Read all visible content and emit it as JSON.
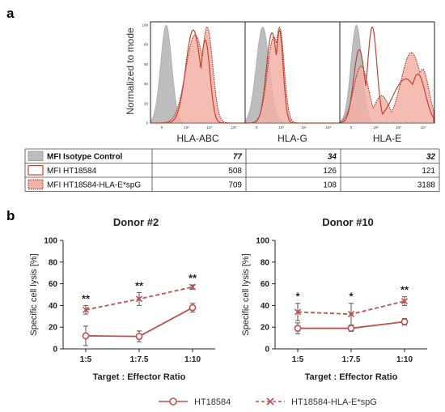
{
  "panel_a": {
    "letter": "a",
    "ylabel": "Normalized to mode",
    "yticks": [
      "0",
      "20",
      "40",
      "60",
      "80",
      "100"
    ],
    "xticks": [
      "0",
      "10³",
      "10⁴",
      "10⁵"
    ],
    "histograms": [
      {
        "label": "HLA-ABC"
      },
      {
        "label": "HLA-G"
      },
      {
        "label": "HLA-E"
      }
    ],
    "table": {
      "rows": [
        {
          "label": "MFI Isotype Control",
          "values": [
            "77",
            "34",
            "32"
          ],
          "bold": true,
          "swatch": "isotype"
        },
        {
          "label": "MFI HT18584",
          "values": [
            "508",
            "126",
            "121"
          ],
          "bold": false,
          "swatch": "ht"
        },
        {
          "label": "MFI HT18584-HLA-E*spG",
          "values": [
            "709",
            "108",
            "3188"
          ],
          "bold": false,
          "swatch": "spg"
        }
      ]
    }
  },
  "panel_b": {
    "letter": "b",
    "legend": [
      "HT18584",
      "HT18584-HLA-E*spG"
    ]
  },
  "colors": {
    "isotype_fill": "#bdbdbd",
    "ht_line": "#c4422f",
    "spg_fill": "#f3b0a6",
    "spg_line": "#8b2a1e",
    "line_chart": "#c0504d"
  },
  "chart_data": [
    {
      "type": "line",
      "title": "Donor #2",
      "xlabel": "Target : Effector Ratio",
      "ylabel": "Specific cell lysis [%]",
      "categories": [
        "1:5",
        "1:7.5",
        "1:10"
      ],
      "ylim": [
        0,
        100
      ],
      "yticks": [
        0,
        20,
        40,
        60,
        80,
        100
      ],
      "series": [
        {
          "name": "HT18584",
          "values": [
            12,
            11.5,
            38
          ],
          "errors": [
            9,
            5,
            4
          ],
          "style": "solid-circle"
        },
        {
          "name": "HT18584-HLA-E*spG",
          "values": [
            36,
            46,
            57
          ],
          "errors": [
            4,
            6,
            2
          ],
          "style": "dashed-cross"
        }
      ],
      "annotations": [
        "**",
        "**",
        "**"
      ]
    },
    {
      "type": "line",
      "title": "Donor #10",
      "xlabel": "Target : Effector Ratio",
      "ylabel": "Specific cell lysis [%]",
      "categories": [
        "1:5",
        "1:7.5",
        "1:10"
      ],
      "ylim": [
        0,
        100
      ],
      "yticks": [
        0,
        20,
        40,
        60,
        80,
        100
      ],
      "series": [
        {
          "name": "HT18584",
          "values": [
            19,
            19,
            25
          ],
          "errors": [
            5,
            3,
            3
          ],
          "style": "solid-circle"
        },
        {
          "name": "HT18584-HLA-E*spG",
          "values": [
            34,
            32,
            44
          ],
          "errors": [
            8,
            10,
            4
          ],
          "style": "dashed-cross"
        }
      ],
      "annotations": [
        "*",
        "*",
        "**"
      ]
    }
  ]
}
